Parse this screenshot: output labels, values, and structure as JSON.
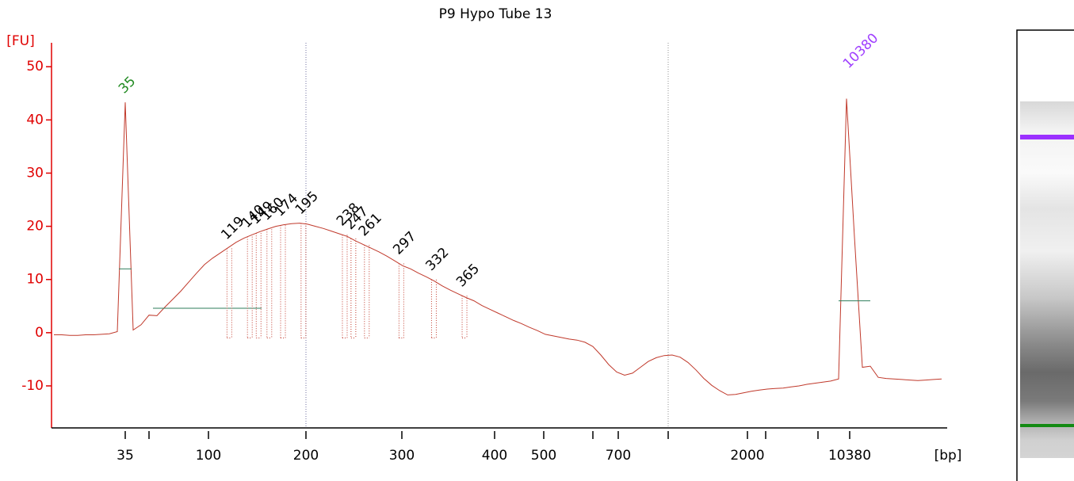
{
  "chart_data": {
    "type": "electropherogram",
    "title": "P9 Hypo Tube 13",
    "y_label": "[FU]",
    "x_label": "[bp]",
    "categories": [
      "35",
      null,
      "100",
      "200",
      "300",
      "400",
      "500",
      null,
      "700",
      null,
      "2000",
      null,
      null,
      "10380"
    ],
    "ylim": [
      -17.9,
      54.5
    ],
    "yticks": [
      -10,
      0,
      10,
      20,
      30,
      40,
      50
    ],
    "axis_color": "#e00000",
    "trace": {
      "color": "#c0392b",
      "values": [
        -0.4,
        -0.4,
        -0.5,
        -0.5,
        -0.4,
        -0.4,
        -0.3,
        -0.2,
        0.2,
        43.3,
        0.5,
        1.5,
        3.3,
        3.2,
        4.8,
        6.3,
        7.8,
        9.5,
        11.2,
        12.8,
        14,
        15,
        16,
        17,
        17.8,
        18.4,
        19,
        19.5,
        20,
        20.3,
        20.5,
        20.6,
        20.4,
        20,
        19.6,
        19.1,
        18.6,
        18.1,
        17.3,
        16.6,
        15.9,
        15.2,
        14.4,
        13.5,
        12.6,
        12,
        11.2,
        10.5,
        9.7,
        8.8,
        8,
        7.3,
        6.6,
        6,
        5.1,
        4.4,
        3.7,
        3,
        2.3,
        1.7,
        1,
        0.4,
        -0.3,
        -0.6,
        -0.9,
        -1.2,
        -1.4,
        -1.8,
        -2.6,
        -4.2,
        -6,
        -7.4,
        -8,
        -7.6,
        -6.5,
        -5.4,
        -4.7,
        -4.3,
        -4.2,
        -4.6,
        -5.6,
        -7,
        -8.6,
        -9.9,
        -10.9,
        -11.7,
        -11.6,
        -11.3,
        -11,
        -10.8,
        -10.6,
        -10.5,
        -10.4,
        -10.2,
        -10,
        -9.7,
        -9.5,
        -9.3,
        -9.1,
        -8.7,
        44,
        18,
        -6.5,
        -6.3,
        -8.4,
        -8.6,
        -8.7,
        -8.8,
        -8.9,
        -9,
        -8.9,
        -8.8,
        -8.7
      ]
    },
    "lower_marker": {
      "size": 35,
      "color": "#228b22"
    },
    "upper_marker": {
      "size": 10380,
      "color": "#a040ff"
    },
    "peaks": [
      119,
      140,
      149,
      160,
      174,
      195,
      238,
      247,
      261,
      297,
      332,
      365
    ]
  }
}
